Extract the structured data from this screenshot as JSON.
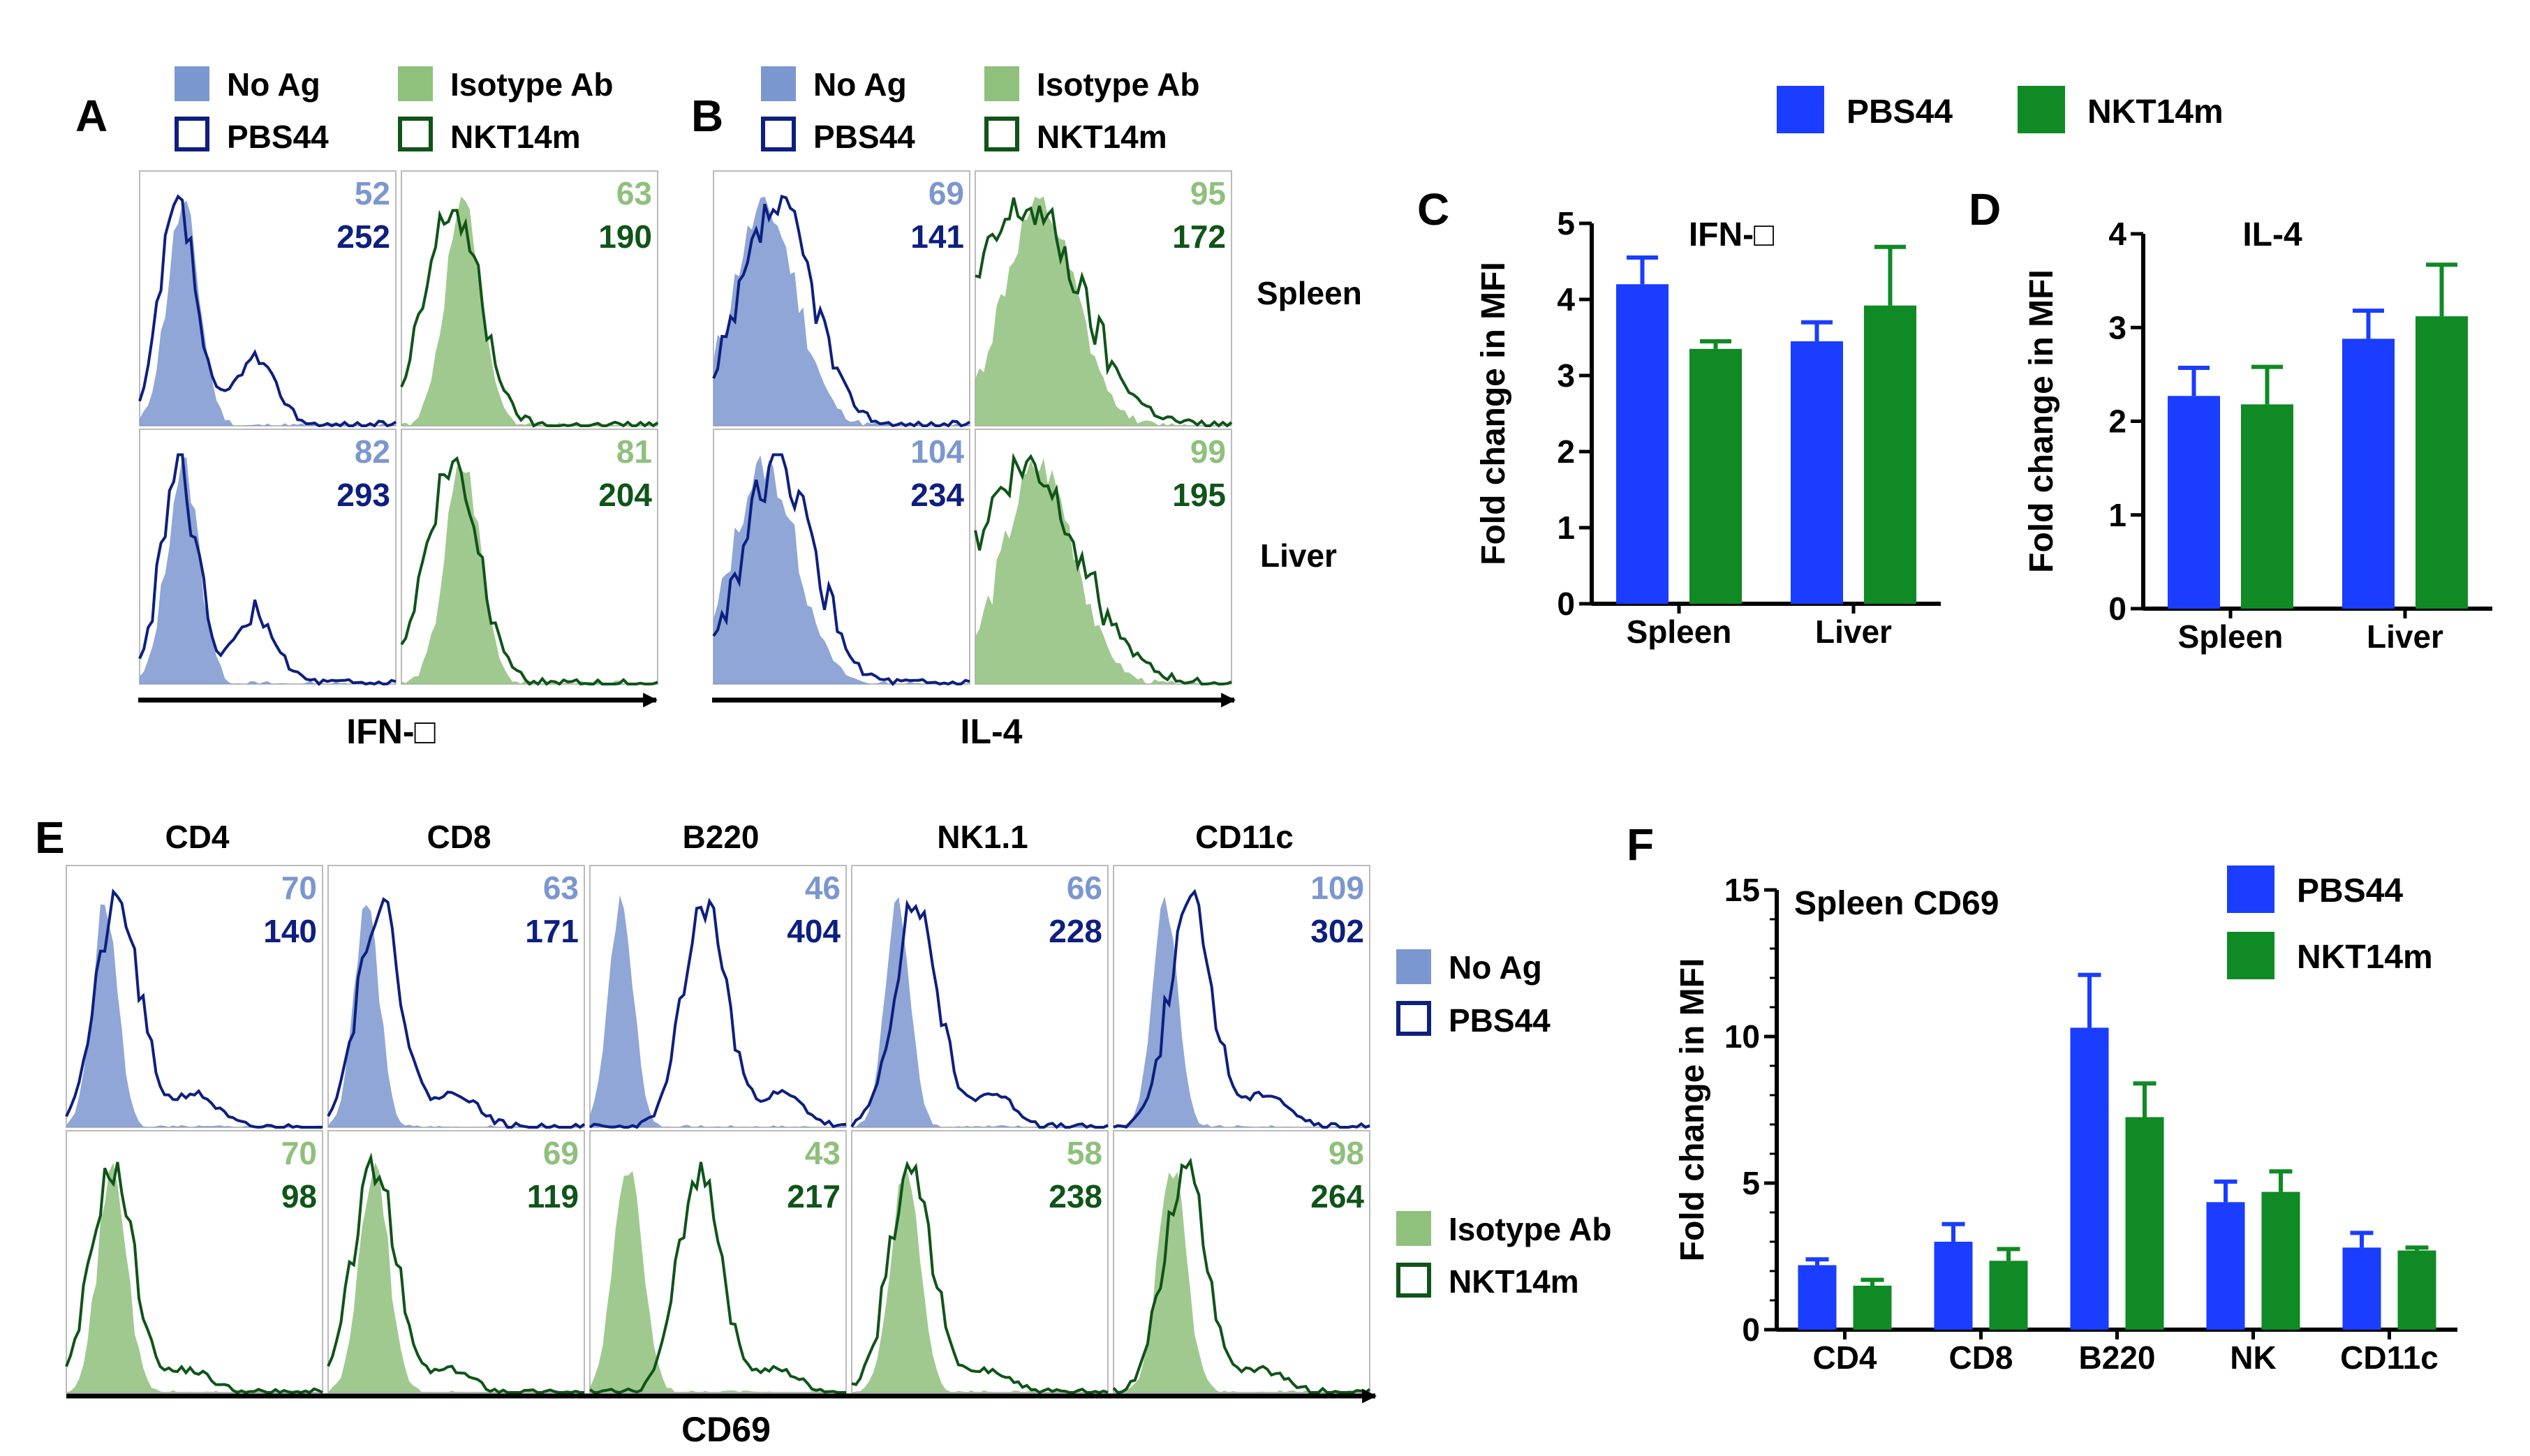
{
  "colors": {
    "noag_fill": "#7b97cf",
    "pbs44": "#0d1f7f",
    "iso_fill": "#8fc07c",
    "nkt14m": "#0f5418",
    "bar_blue": "#1a3dff",
    "bar_green": "#0f8a24",
    "axis": "#000000"
  },
  "legend_top_left": {
    "no_ag": "No Ag",
    "isotype_ab": "Isotype Ab",
    "pbs44": "PBS44",
    "nkt14m": "NKT14m"
  },
  "legend_top_right": {
    "pbs44": "PBS44",
    "nkt14m": "NKT14m"
  },
  "panel_letters": {
    "A": "A",
    "B": "B",
    "C": "C",
    "D": "D",
    "E": "E",
    "F": "F"
  },
  "row_labels": {
    "spleen": "Spleen",
    "liver": "Liver"
  },
  "panel_A": {
    "xlabel": "IFN-□",
    "cells": [
      {
        "row": 0,
        "col": 0,
        "top": "52",
        "bottom": "252"
      },
      {
        "row": 0,
        "col": 1,
        "top": "63",
        "bottom": "190"
      },
      {
        "row": 1,
        "col": 0,
        "top": "82",
        "bottom": "293"
      },
      {
        "row": 1,
        "col": 1,
        "top": "81",
        "bottom": "204"
      }
    ]
  },
  "panel_B": {
    "xlabel": "IL-4",
    "cells": [
      {
        "row": 0,
        "col": 0,
        "top": "69",
        "bottom": "141"
      },
      {
        "row": 0,
        "col": 1,
        "top": "95",
        "bottom": "172"
      },
      {
        "row": 1,
        "col": 0,
        "top": "104",
        "bottom": "234"
      },
      {
        "row": 1,
        "col": 1,
        "top": "99",
        "bottom": "195"
      }
    ]
  },
  "panel_E": {
    "xlabel": "CD69",
    "columns": [
      "CD4",
      "CD8",
      "B220",
      "NK1.1",
      "CD11c"
    ],
    "blue_row": [
      {
        "top": "70",
        "bottom": "140"
      },
      {
        "top": "63",
        "bottom": "171"
      },
      {
        "top": "46",
        "bottom": "404"
      },
      {
        "top": "66",
        "bottom": "228"
      },
      {
        "top": "109",
        "bottom": "302"
      }
    ],
    "green_row": [
      {
        "top": "70",
        "bottom": "98"
      },
      {
        "top": "69",
        "bottom": "119"
      },
      {
        "top": "43",
        "bottom": "217"
      },
      {
        "top": "58",
        "bottom": "238"
      },
      {
        "top": "98",
        "bottom": "264"
      }
    ],
    "legend": {
      "no_ag": "No Ag",
      "pbs44": "PBS44",
      "isotype_ab": "Isotype Ab",
      "nkt14m": "NKT14m"
    }
  },
  "chart_data": [
    {
      "id": "C",
      "type": "bar",
      "title": "IFN-□",
      "ylabel": "Fold change in MFI",
      "ylim": [
        0,
        5
      ],
      "yticks": [
        "0",
        "1",
        "2",
        "3",
        "4",
        "5"
      ],
      "categories": [
        "Spleen",
        "Liver"
      ],
      "series": [
        {
          "name": "PBS44",
          "values": [
            4.2,
            3.45
          ],
          "errors": [
            0.35,
            0.25
          ]
        },
        {
          "name": "NKT14m",
          "values": [
            3.35,
            3.92
          ],
          "errors": [
            0.1,
            0.77
          ]
        }
      ]
    },
    {
      "id": "D",
      "type": "bar",
      "title": "IL-4",
      "ylabel": "Fold change in MFI",
      "ylim": [
        0,
        4
      ],
      "yticks": [
        "0",
        "1",
        "2",
        "3",
        "4"
      ],
      "categories": [
        "Spleen",
        "Liver"
      ],
      "series": [
        {
          "name": "PBS44",
          "values": [
            2.27,
            2.88
          ],
          "errors": [
            0.3,
            0.3
          ]
        },
        {
          "name": "NKT14m",
          "values": [
            2.18,
            3.12
          ],
          "errors": [
            0.4,
            0.55
          ]
        }
      ]
    },
    {
      "id": "F",
      "type": "bar",
      "title": "Spleen  CD69",
      "ylabel": "Fold change in MFI",
      "ylim": [
        0,
        15
      ],
      "yticks": [
        "0",
        "5",
        "10",
        "15"
      ],
      "categories": [
        "CD4",
        "CD8",
        "B220",
        "NK",
        "CD11c"
      ],
      "legend": [
        "PBS44",
        "NKT14m"
      ],
      "series": [
        {
          "name": "PBS44",
          "values": [
            2.2,
            3.0,
            10.3,
            4.35,
            2.8
          ],
          "errors": [
            0.2,
            0.6,
            1.8,
            0.7,
            0.5
          ]
        },
        {
          "name": "NKT14m",
          "values": [
            1.5,
            2.35,
            7.25,
            4.7,
            2.7
          ],
          "errors": [
            0.2,
            0.4,
            1.15,
            0.7,
            0.1
          ]
        }
      ]
    }
  ]
}
